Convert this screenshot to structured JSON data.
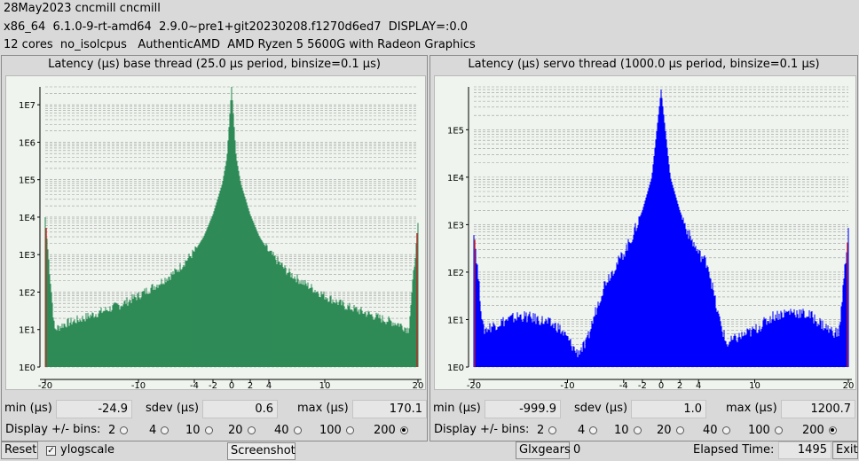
{
  "header": {
    "line1": "28May2023 cncmill cncmill",
    "line2": "x86_64  6.1.0-9-rt-amd64  2.9.0~pre1+git20230208.f1270d6ed7  DISPLAY=:0.0",
    "line3": "12 cores  no_isolcpus   AuthenticAMD  AMD Ryzen 5 5600G with Radeon Graphics"
  },
  "panels": [
    {
      "title": "Latency (µs) base thread (25.0 µs period, binsize=0.1 µs)",
      "min_label": "min (µs)",
      "min_value": "-24.9",
      "sdev_label": "sdev (µs)",
      "sdev_value": "0.6",
      "max_label": "max (µs)",
      "max_value": "170.1",
      "bins_label": "Display +/- bins:",
      "bins_options": [
        "2",
        "4",
        "10",
        "20",
        "40",
        "100",
        "200"
      ],
      "bins_selected": "200",
      "color": "#2e8b57"
    },
    {
      "title": "Latency (µs) servo thread (1000.0 µs period, binsize=0.1 µs)",
      "min_label": "min (µs)",
      "min_value": "-999.9",
      "sdev_label": "sdev (µs)",
      "sdev_value": "1.0",
      "max_label": "max (µs)",
      "max_value": "1200.7",
      "bins_label": "Display +/- bins:",
      "bins_options": [
        "2",
        "4",
        "10",
        "20",
        "40",
        "100",
        "200"
      ],
      "bins_selected": "200",
      "color": "#0000ff"
    }
  ],
  "chart_data": [
    {
      "type": "bar",
      "title": "Latency (µs) base thread (25.0 µs period, binsize=0.1 µs)",
      "xlabel": "",
      "ylabel": "",
      "x_ticks": [
        "-20",
        "-10",
        "-4",
        "-2",
        "0",
        "2",
        "4",
        "10",
        "20"
      ],
      "y_ticks": [
        "1E0",
        "1E1",
        "1E2",
        "1E3",
        "1E4",
        "1E5",
        "1E6",
        "1E7"
      ],
      "y_scale": "log",
      "xlim": [
        -20,
        20
      ],
      "ylim": [
        1,
        30000000
      ],
      "x": [
        -20,
        -19,
        -18,
        -16,
        -14,
        -12,
        -10,
        -8,
        -6,
        -4,
        -3,
        -2,
        -1,
        -0.5,
        0,
        0.5,
        1,
        2,
        3,
        4,
        6,
        8,
        10,
        12,
        14,
        16,
        18,
        19,
        20
      ],
      "values": [
        10000,
        10,
        14,
        20,
        30,
        45,
        80,
        160,
        350,
        1200,
        3000,
        12000,
        80000,
        400000,
        30000000,
        400000,
        80000,
        12000,
        3000,
        1200,
        350,
        160,
        80,
        45,
        30,
        20,
        14,
        10,
        7000
      ],
      "color": "#2e8b57"
    },
    {
      "type": "bar",
      "title": "Latency (µs) servo thread (1000.0 µs period, binsize=0.1 µs)",
      "xlabel": "",
      "ylabel": "",
      "x_ticks": [
        "-20",
        "-10",
        "-4",
        "-2",
        "0",
        "2",
        "4",
        "10",
        "20"
      ],
      "y_ticks": [
        "1E0",
        "1E1",
        "1E2",
        "1E3",
        "1E4",
        "1E5"
      ],
      "y_scale": "log",
      "xlim": [
        -20,
        20
      ],
      "ylim": [
        1,
        800000
      ],
      "x": [
        -20,
        -19,
        -17,
        -15,
        -13,
        -11,
        -10,
        -9,
        -8,
        -7,
        -6,
        -4,
        -3,
        -2,
        -1,
        0,
        1,
        2,
        3,
        4,
        5,
        6,
        7,
        8,
        10,
        12,
        14,
        16,
        18,
        19,
        20
      ],
      "values": [
        800,
        6,
        9,
        12,
        10,
        7,
        4,
        2,
        3,
        15,
        60,
        250,
        600,
        2000,
        10000,
        700000,
        10000,
        2000,
        600,
        250,
        150,
        15,
        3,
        4,
        6,
        12,
        15,
        12,
        6,
        5,
        800
      ],
      "color": "#0000ff"
    }
  ],
  "footer": {
    "reset_label": "Reset",
    "ylogscale_label": "ylogscale",
    "ylogscale_checked": "✓",
    "screenshot_label": "Screenshot",
    "glxgears_label": "Glxgears",
    "glxgears_count": "0",
    "elapsed_label": "Elapsed Time:",
    "elapsed_value": "1495",
    "exit_label": "Exit"
  }
}
